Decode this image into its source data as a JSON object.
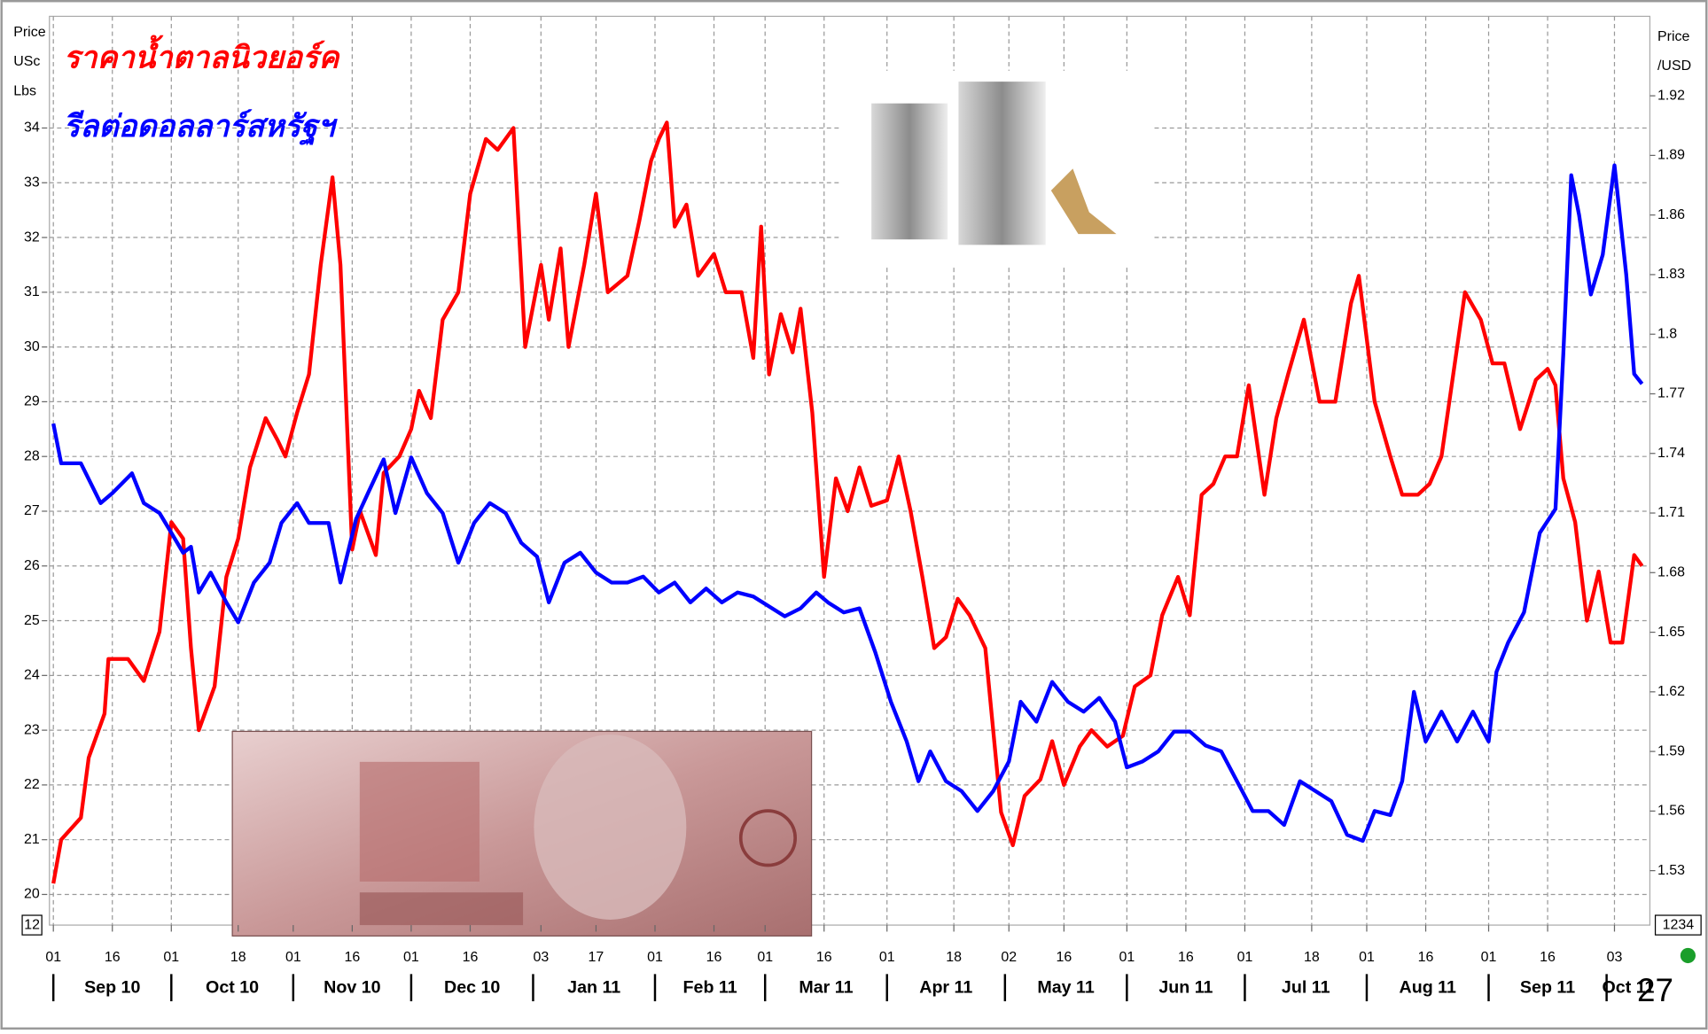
{
  "page_number": "27",
  "chart_data": {
    "type": "line",
    "y_label_lines": [
      "Price",
      "USc",
      "Lbs"
    ],
    "y2_label_lines": [
      "Price",
      "/USD"
    ],
    "left_box_label": "12",
    "right_box_label": "1234",
    "xlim": [
      "2010-08-31",
      "2011-10-12"
    ],
    "ylim": [
      19.44,
      36.04
    ],
    "yticks": [
      20,
      21,
      22,
      23,
      24,
      25,
      26,
      27,
      28,
      29,
      30,
      31,
      32,
      33,
      34
    ],
    "y2lim": [
      1.5026,
      1.96
    ],
    "y2ticks": [
      1.53,
      1.56,
      1.59,
      1.62,
      1.65,
      1.68,
      1.71,
      1.74,
      1.77,
      1.8,
      1.83,
      1.86,
      1.89,
      1.92
    ],
    "grid": true,
    "xticks": [
      {
        "value": "2010-09-01",
        "label": "01"
      },
      {
        "value": "2010-09-16",
        "label": "16"
      },
      {
        "value": "2010-10-01",
        "label": "01"
      },
      {
        "value": "2010-10-18",
        "label": "18"
      },
      {
        "value": "2010-11-01",
        "label": "01"
      },
      {
        "value": "2010-11-16",
        "label": "16"
      },
      {
        "value": "2010-12-01",
        "label": "01"
      },
      {
        "value": "2010-12-16",
        "label": "16"
      },
      {
        "value": "2011-01-03",
        "label": "03"
      },
      {
        "value": "2011-01-17",
        "label": "17"
      },
      {
        "value": "2011-02-01",
        "label": "01"
      },
      {
        "value": "2011-02-16",
        "label": "16"
      },
      {
        "value": "2011-03-01",
        "label": "01"
      },
      {
        "value": "2011-03-16",
        "label": "16"
      },
      {
        "value": "2011-04-01",
        "label": "01"
      },
      {
        "value": "2011-04-18",
        "label": "18"
      },
      {
        "value": "2011-05-02",
        "label": "02"
      },
      {
        "value": "2011-05-16",
        "label": "16"
      },
      {
        "value": "2011-06-01",
        "label": "01"
      },
      {
        "value": "2011-06-16",
        "label": "16"
      },
      {
        "value": "2011-07-01",
        "label": "01"
      },
      {
        "value": "2011-07-18",
        "label": "18"
      },
      {
        "value": "2011-08-01",
        "label": "01"
      },
      {
        "value": "2011-08-16",
        "label": "16"
      },
      {
        "value": "2011-09-01",
        "label": "01"
      },
      {
        "value": "2011-09-16",
        "label": "16"
      },
      {
        "value": "2011-10-03",
        "label": "03"
      }
    ],
    "months": [
      {
        "start": "2010-09-01",
        "label": "Sep 10"
      },
      {
        "start": "2010-10-01",
        "label": "Oct 10"
      },
      {
        "start": "2010-11-01",
        "label": "Nov 10"
      },
      {
        "start": "2010-12-01",
        "label": "Dec 10"
      },
      {
        "start": "2011-01-01",
        "label": "Jan 11"
      },
      {
        "start": "2011-02-01",
        "label": "Feb 11"
      },
      {
        "start": "2011-03-01",
        "label": "Mar 11"
      },
      {
        "start": "2011-04-01",
        "label": "Apr 11"
      },
      {
        "start": "2011-05-01",
        "label": "May 11"
      },
      {
        "start": "2011-06-01",
        "label": "Jun 11"
      },
      {
        "start": "2011-07-01",
        "label": "Jul 11"
      },
      {
        "start": "2011-08-01",
        "label": "Aug 11"
      },
      {
        "start": "2011-09-01",
        "label": "Sep 11"
      },
      {
        "start": "2011-10-01",
        "label": "Oct 11"
      }
    ],
    "series": [
      {
        "name": "ราคาน้ำตาลนิวยอร์ค",
        "color": "#ff0000",
        "axis": "y",
        "x": [
          "2010-09-01",
          "2010-09-03",
          "2010-09-08",
          "2010-09-10",
          "2010-09-14",
          "2010-09-15",
          "2010-09-20",
          "2010-09-24",
          "2010-09-28",
          "2010-10-01",
          "2010-10-04",
          "2010-10-06",
          "2010-10-08",
          "2010-10-12",
          "2010-10-15",
          "2010-10-18",
          "2010-10-21",
          "2010-10-25",
          "2010-10-28",
          "2010-10-30",
          "2010-11-02",
          "2010-11-05",
          "2010-11-08",
          "2010-11-11",
          "2010-11-13",
          "2010-11-16",
          "2010-11-18",
          "2010-11-22",
          "2010-11-24",
          "2010-11-28",
          "2010-12-01",
          "2010-12-03",
          "2010-12-06",
          "2010-12-09",
          "2010-12-13",
          "2010-12-16",
          "2010-12-20",
          "2010-12-23",
          "2010-12-27",
          "2010-12-30",
          "2011-01-03",
          "2011-01-05",
          "2011-01-08",
          "2011-01-10",
          "2011-01-14",
          "2011-01-17",
          "2011-01-20",
          "2011-01-25",
          "2011-01-28",
          "2011-01-31",
          "2011-02-02",
          "2011-02-04",
          "2011-02-06",
          "2011-02-09",
          "2011-02-12",
          "2011-02-16",
          "2011-02-19",
          "2011-02-23",
          "2011-02-26",
          "2011-02-28",
          "2011-03-02",
          "2011-03-05",
          "2011-03-08",
          "2011-03-10",
          "2011-03-13",
          "2011-03-16",
          "2011-03-19",
          "2011-03-22",
          "2011-03-25",
          "2011-03-28",
          "2011-04-01",
          "2011-04-04",
          "2011-04-07",
          "2011-04-10",
          "2011-04-13",
          "2011-04-16",
          "2011-04-19",
          "2011-04-22",
          "2011-04-26",
          "2011-04-30",
          "2011-05-03",
          "2011-05-06",
          "2011-05-10",
          "2011-05-13",
          "2011-05-16",
          "2011-05-20",
          "2011-05-23",
          "2011-05-27",
          "2011-05-31",
          "2011-06-03",
          "2011-06-07",
          "2011-06-10",
          "2011-06-14",
          "2011-06-17",
          "2011-06-20",
          "2011-06-23",
          "2011-06-26",
          "2011-06-29",
          "2011-07-02",
          "2011-07-06",
          "2011-07-09",
          "2011-07-12",
          "2011-07-16",
          "2011-07-20",
          "2011-07-24",
          "2011-07-28",
          "2011-07-30",
          "2011-08-03",
          "2011-08-07",
          "2011-08-10",
          "2011-08-14",
          "2011-08-17",
          "2011-08-20",
          "2011-08-23",
          "2011-08-26",
          "2011-08-30",
          "2011-09-02",
          "2011-09-05",
          "2011-09-09",
          "2011-09-13",
          "2011-09-16",
          "2011-09-18",
          "2011-09-20",
          "2011-09-23",
          "2011-09-26",
          "2011-09-29",
          "2011-10-02",
          "2011-10-05",
          "2011-10-08",
          "2011-10-10"
        ],
        "values": [
          20.2,
          21.0,
          21.4,
          22.5,
          23.3,
          24.3,
          24.3,
          23.9,
          24.8,
          26.8,
          26.5,
          24.5,
          23.0,
          23.8,
          25.8,
          26.5,
          27.8,
          28.7,
          28.3,
          28.0,
          28.8,
          29.5,
          31.5,
          33.1,
          31.5,
          26.3,
          27.0,
          26.2,
          27.7,
          28.0,
          28.5,
          29.2,
          28.7,
          30.5,
          31.0,
          32.8,
          33.8,
          33.6,
          34.0,
          30.0,
          31.5,
          30.5,
          31.8,
          30.0,
          31.5,
          32.8,
          31.0,
          31.3,
          32.3,
          33.4,
          33.8,
          34.1,
          32.2,
          32.6,
          31.3,
          31.7,
          31.0,
          31.0,
          29.8,
          32.2,
          29.5,
          30.6,
          29.9,
          30.7,
          28.8,
          25.8,
          27.6,
          27.0,
          27.8,
          27.1,
          27.2,
          28.0,
          27.0,
          25.8,
          24.5,
          24.7,
          25.4,
          25.1,
          24.5,
          21.5,
          20.9,
          21.8,
          22.1,
          22.8,
          22.0,
          22.7,
          23.0,
          22.7,
          22.9,
          23.8,
          24.0,
          25.1,
          25.8,
          25.1,
          27.3,
          27.5,
          28.0,
          28.0,
          29.3,
          27.3,
          28.7,
          29.5,
          30.5,
          29.0,
          29.0,
          30.8,
          31.3,
          29.0,
          28.0,
          27.3,
          27.3,
          27.5,
          28.0,
          29.5,
          31.0,
          30.5,
          29.7,
          29.7,
          28.5,
          29.4,
          29.6,
          29.3,
          27.6,
          26.8,
          25.0,
          25.9,
          24.6,
          24.6,
          26.2,
          26.0
        ]
      },
      {
        "name": "รีลต่อดอลลาร์สหรัฐฯ",
        "color": "#0000ff",
        "axis": "y2",
        "x": [
          "2010-09-01",
          "2010-09-03",
          "2010-09-08",
          "2010-09-13",
          "2010-09-16",
          "2010-09-21",
          "2010-09-24",
          "2010-09-28",
          "2010-10-01",
          "2010-10-04",
          "2010-10-06",
          "2010-10-08",
          "2010-10-11",
          "2010-10-15",
          "2010-10-18",
          "2010-10-22",
          "2010-10-26",
          "2010-10-29",
          "2010-11-02",
          "2010-11-05",
          "2010-11-10",
          "2010-11-13",
          "2010-11-17",
          "2010-11-20",
          "2010-11-24",
          "2010-11-27",
          "2010-12-01",
          "2010-12-05",
          "2010-12-09",
          "2010-12-13",
          "2010-12-17",
          "2010-12-21",
          "2010-12-25",
          "2010-12-29",
          "2011-01-02",
          "2011-01-05",
          "2011-01-09",
          "2011-01-13",
          "2011-01-17",
          "2011-01-21",
          "2011-01-25",
          "2011-01-29",
          "2011-02-02",
          "2011-02-06",
          "2011-02-10",
          "2011-02-14",
          "2011-02-18",
          "2011-02-22",
          "2011-02-26",
          "2011-03-02",
          "2011-03-06",
          "2011-03-10",
          "2011-03-14",
          "2011-03-17",
          "2011-03-21",
          "2011-03-25",
          "2011-03-29",
          "2011-04-02",
          "2011-04-06",
          "2011-04-09",
          "2011-04-12",
          "2011-04-16",
          "2011-04-20",
          "2011-04-24",
          "2011-04-28",
          "2011-05-02",
          "2011-05-05",
          "2011-05-09",
          "2011-05-13",
          "2011-05-17",
          "2011-05-21",
          "2011-05-25",
          "2011-05-29",
          "2011-06-01",
          "2011-06-05",
          "2011-06-09",
          "2011-06-13",
          "2011-06-17",
          "2011-06-21",
          "2011-06-25",
          "2011-06-29",
          "2011-07-03",
          "2011-07-07",
          "2011-07-11",
          "2011-07-15",
          "2011-07-19",
          "2011-07-23",
          "2011-07-27",
          "2011-07-31",
          "2011-08-03",
          "2011-08-07",
          "2011-08-10",
          "2011-08-13",
          "2011-08-16",
          "2011-08-20",
          "2011-08-24",
          "2011-08-28",
          "2011-09-01",
          "2011-09-03",
          "2011-09-06",
          "2011-09-10",
          "2011-09-14",
          "2011-09-18",
          "2011-09-20",
          "2011-09-22",
          "2011-09-24",
          "2011-09-27",
          "2011-09-30",
          "2011-10-03",
          "2011-10-06",
          "2011-10-08",
          "2011-10-10"
        ],
        "values": [
          1.755,
          1.735,
          1.735,
          1.715,
          1.72,
          1.73,
          1.715,
          1.71,
          1.7,
          1.69,
          1.693,
          1.67,
          1.68,
          1.665,
          1.655,
          1.675,
          1.685,
          1.705,
          1.715,
          1.705,
          1.705,
          1.675,
          1.707,
          1.72,
          1.737,
          1.71,
          1.738,
          1.72,
          1.71,
          1.685,
          1.705,
          1.715,
          1.71,
          1.695,
          1.688,
          1.665,
          1.685,
          1.69,
          1.68,
          1.675,
          1.675,
          1.678,
          1.67,
          1.675,
          1.665,
          1.672,
          1.665,
          1.67,
          1.668,
          1.663,
          1.658,
          1.662,
          1.67,
          1.665,
          1.66,
          1.662,
          1.64,
          1.615,
          1.595,
          1.575,
          1.59,
          1.575,
          1.57,
          1.56,
          1.57,
          1.585,
          1.615,
          1.605,
          1.625,
          1.615,
          1.61,
          1.617,
          1.605,
          1.582,
          1.585,
          1.59,
          1.6,
          1.6,
          1.593,
          1.59,
          1.575,
          1.56,
          1.56,
          1.553,
          1.575,
          1.57,
          1.565,
          1.548,
          1.545,
          1.56,
          1.558,
          1.575,
          1.62,
          1.595,
          1.61,
          1.595,
          1.61,
          1.595,
          1.63,
          1.645,
          1.66,
          1.7,
          1.712,
          1.79,
          1.88,
          1.86,
          1.82,
          1.84,
          1.885,
          1.83,
          1.78,
          1.775
        ]
      }
    ]
  }
}
